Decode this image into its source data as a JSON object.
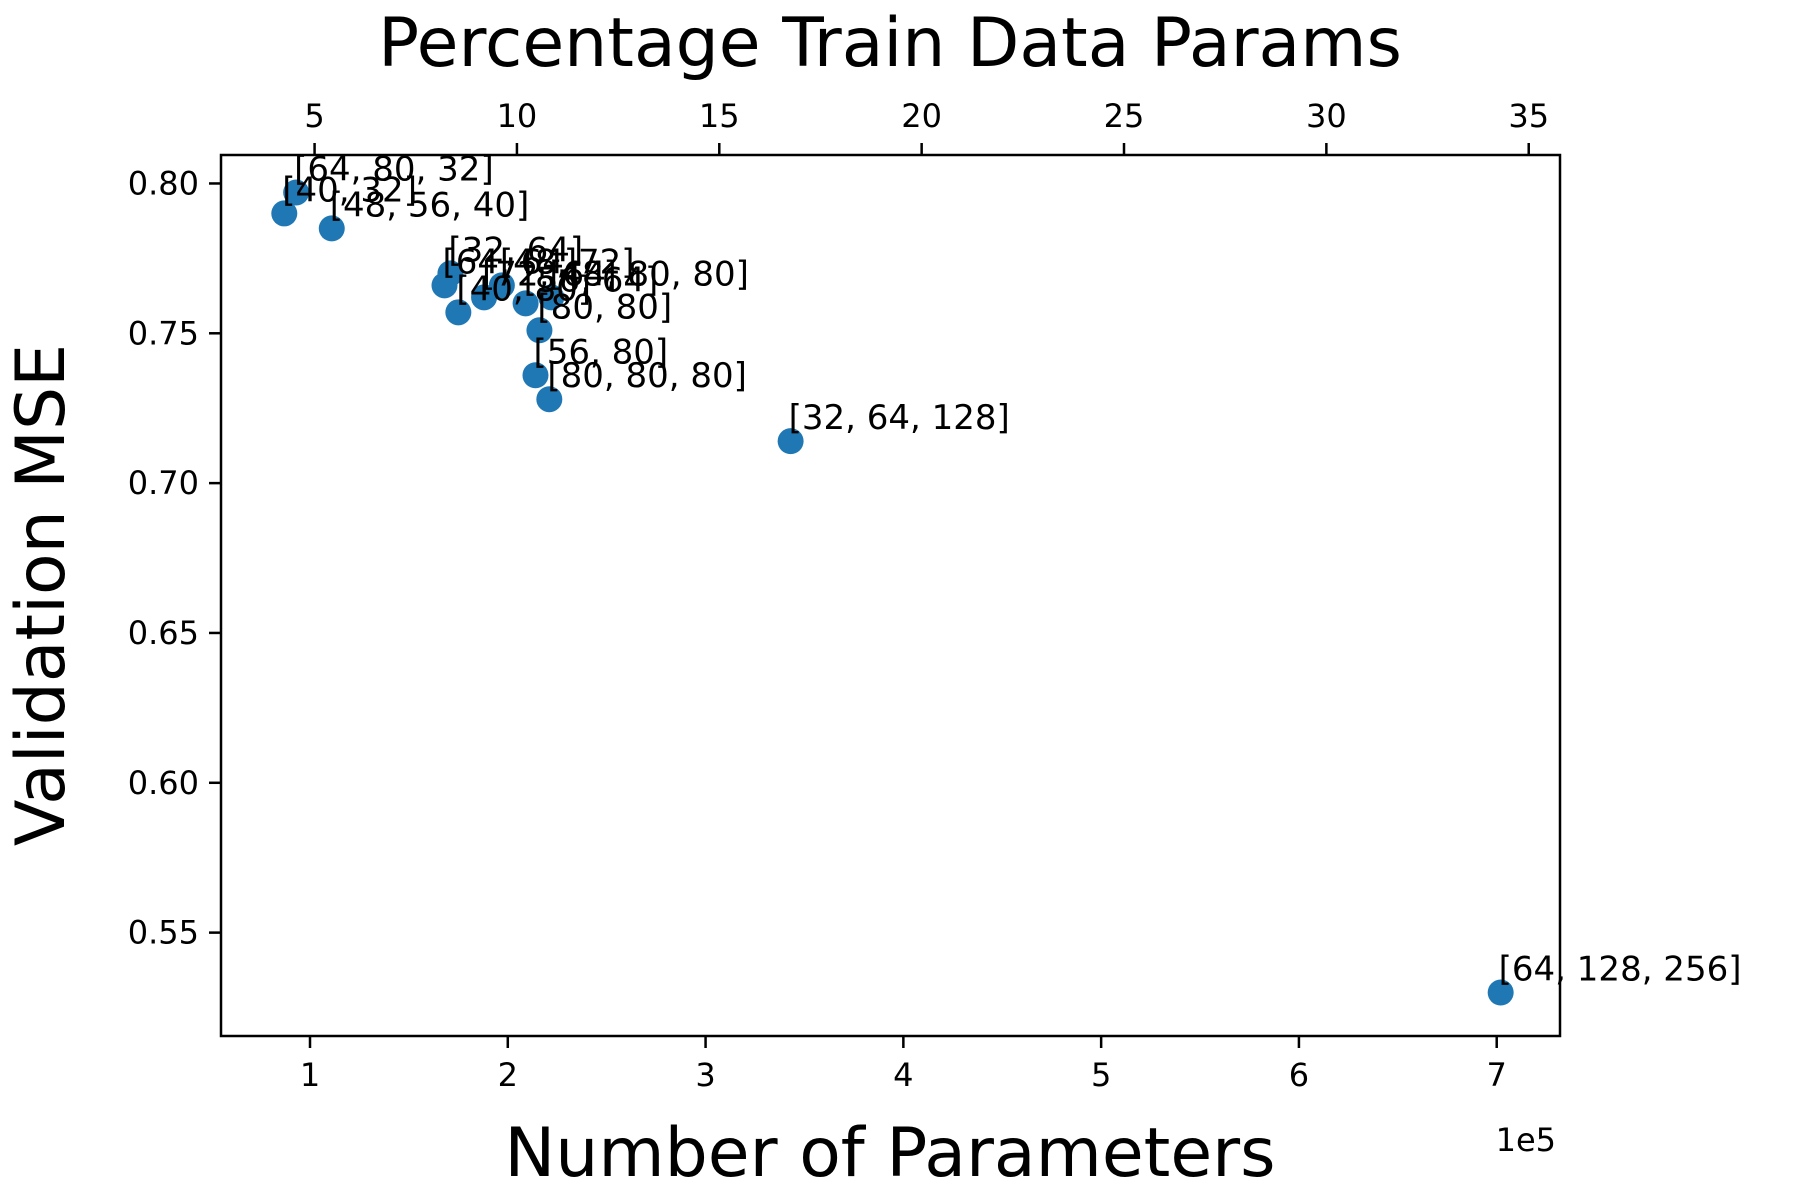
{
  "chart_data": {
    "type": "scatter",
    "title": "Percentage Train Data Params",
    "xlabel": "Number of Parameters",
    "ylabel": "Validation MSE",
    "x_offset_text": "1e5",
    "x_unit_scale": 100000,
    "xlim": [
      55000,
      732000
    ],
    "ylim": [
      0.5155,
      0.8095
    ],
    "xticks": [
      1,
      2,
      3,
      4,
      5,
      6,
      7
    ],
    "xtick_labels": [
      "1",
      "2",
      "3",
      "4",
      "5",
      "6",
      "7"
    ],
    "yticks": [
      0.55,
      0.6,
      0.65,
      0.7,
      0.75,
      0.8
    ],
    "ytick_labels": [
      "0.55",
      "0.60",
      "0.65",
      "0.70",
      "0.75",
      "0.80"
    ],
    "top_axis": {
      "label": "Percentage Train Data Params",
      "percent_per_param": 4.887e-05,
      "ticks": [
        5,
        10,
        15,
        20,
        25,
        30,
        35
      ],
      "tick_labels": [
        "5",
        "10",
        "15",
        "20",
        "25",
        "30",
        "35"
      ]
    },
    "marker_color": "#1f77b4",
    "grid": false,
    "points": [
      {
        "x": 93000,
        "y": 0.797,
        "label": "[64, 80, 32]"
      },
      {
        "x": 87000,
        "y": 0.79,
        "label": "[40, 32]"
      },
      {
        "x": 111000,
        "y": 0.785,
        "label": "[48, 56, 40]"
      },
      {
        "x": 171000,
        "y": 0.77,
        "label": "[32, 64]"
      },
      {
        "x": 168000,
        "y": 0.766,
        "label": "[64, 64]"
      },
      {
        "x": 188000,
        "y": 0.762,
        "label": "[72, 48]"
      },
      {
        "x": 197000,
        "y": 0.766,
        "label": "[48, 72]"
      },
      {
        "x": 209000,
        "y": 0.76,
        "label": "[56, 64]"
      },
      {
        "x": 222000,
        "y": 0.762,
        "label": "[64, 80, 80]"
      },
      {
        "x": 175000,
        "y": 0.757,
        "label": "[40, 80]"
      },
      {
        "x": 216000,
        "y": 0.751,
        "label": "[80, 80]"
      },
      {
        "x": 214000,
        "y": 0.736,
        "label": "[56, 80]"
      },
      {
        "x": 221000,
        "y": 0.728,
        "label": "[80, 80, 80]"
      },
      {
        "x": 343000,
        "y": 0.714,
        "label": "[32, 64, 128]"
      },
      {
        "x": 702000,
        "y": 0.53,
        "label": "[64, 128, 256]"
      }
    ]
  }
}
